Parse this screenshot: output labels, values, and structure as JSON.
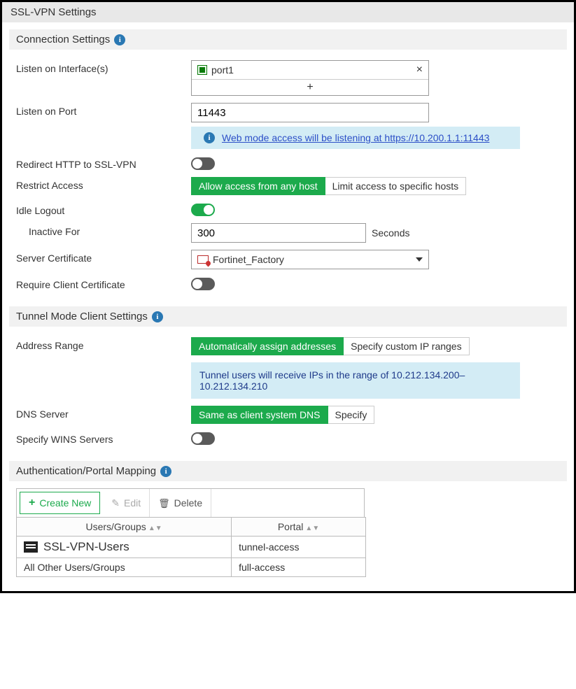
{
  "page_title": "SSL-VPN Settings",
  "connection": {
    "header": "Connection Settings",
    "listen_interface_label": "Listen on Interface(s)",
    "interface_value": "port1",
    "listen_port_label": "Listen on Port",
    "port_value": "11443",
    "port_info_prefix": "Web mode access will be listening at ",
    "port_info_link": "https://10.200.1.1:11443",
    "redirect_label": "Redirect HTTP to SSL-VPN",
    "redirect_on": false,
    "restrict_label": "Restrict Access",
    "restrict_options": [
      "Allow access from any host",
      "Limit access to specific hosts"
    ],
    "restrict_active": 0,
    "idle_label": "Idle Logout",
    "idle_on": true,
    "inactive_label": "Inactive For",
    "inactive_value": "300",
    "inactive_unit": "Seconds",
    "cert_label": "Server Certificate",
    "cert_value": "Fortinet_Factory",
    "client_cert_label": "Require Client Certificate",
    "client_cert_on": false
  },
  "tunnel": {
    "header": "Tunnel Mode Client Settings",
    "addr_label": "Address Range",
    "addr_options": [
      "Automatically assign addresses",
      "Specify custom IP ranges"
    ],
    "addr_active": 0,
    "addr_info": "Tunnel users will receive IPs in the range of 10.212.134.200–10.212.134.210",
    "dns_label": "DNS Server",
    "dns_options": [
      "Same as client system DNS",
      "Specify"
    ],
    "dns_active": 0,
    "wins_label": "Specify WINS Servers",
    "wins_on": false
  },
  "auth": {
    "header": "Authentication/Portal Mapping",
    "create_label": "Create New",
    "edit_label": "Edit",
    "delete_label": "Delete",
    "col_users": "Users/Groups",
    "col_portal": "Portal",
    "rows": [
      {
        "group": "SSL-VPN-Users",
        "portal": "tunnel-access",
        "has_icon": true
      },
      {
        "group": "All Other Users/Groups",
        "portal": "full-access",
        "has_icon": false
      }
    ]
  },
  "colors": {
    "accent_green": "#1caa4c",
    "info_bg": "#d3ecf5",
    "link": "#2c4fc7"
  }
}
